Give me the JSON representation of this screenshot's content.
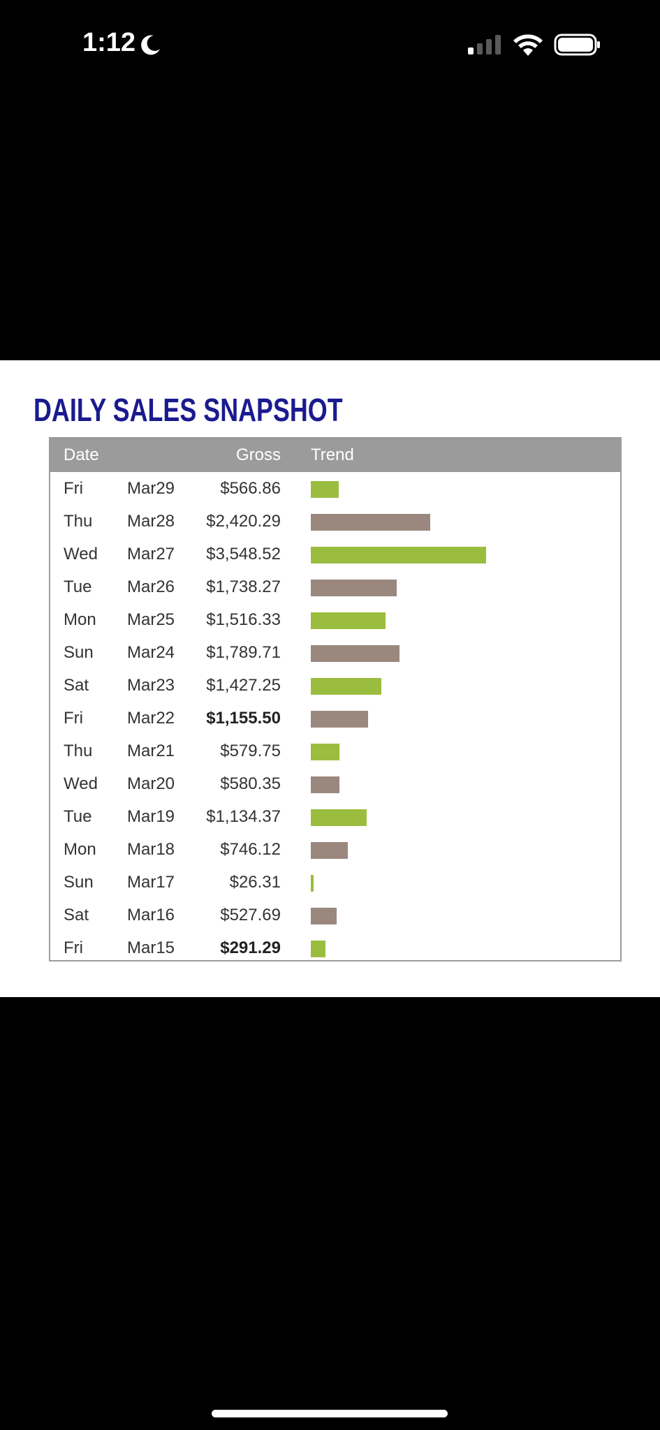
{
  "status_bar": {
    "time": "1:12",
    "moon_icon": "moon-icon",
    "signal_icon": "cellular-signal-icon",
    "wifi_icon": "wifi-icon",
    "battery_icon": "battery-icon"
  },
  "card": {
    "title": "DAILY SALES SNAPSHOT",
    "headers": {
      "date": "Date",
      "gross": "Gross",
      "trend": "Trend"
    },
    "colors": {
      "title": "#1a1b8f",
      "header_bg": "#9b9b9b",
      "bar_green": "#9bbd3f",
      "bar_taupe": "#9a877e"
    }
  },
  "chart_data": {
    "type": "table",
    "title": "DAILY SALES SNAPSHOT",
    "columns": [
      "Date",
      "Gross",
      "Trend"
    ],
    "trend_max": 3548.52,
    "rows": [
      {
        "day": "Fri",
        "date": "Mar29",
        "gross": "$566.86",
        "value": 566.86,
        "bold": false,
        "color": "#9bbd3f"
      },
      {
        "day": "Thu",
        "date": "Mar28",
        "gross": "$2,420.29",
        "value": 2420.29,
        "bold": false,
        "color": "#9a877e"
      },
      {
        "day": "Wed",
        "date": "Mar27",
        "gross": "$3,548.52",
        "value": 3548.52,
        "bold": false,
        "color": "#9bbd3f"
      },
      {
        "day": "Tue",
        "date": "Mar26",
        "gross": "$1,738.27",
        "value": 1738.27,
        "bold": false,
        "color": "#9a877e"
      },
      {
        "day": "Mon",
        "date": "Mar25",
        "gross": "$1,516.33",
        "value": 1516.33,
        "bold": false,
        "color": "#9bbd3f"
      },
      {
        "day": "Sun",
        "date": "Mar24",
        "gross": "$1,789.71",
        "value": 1789.71,
        "bold": false,
        "color": "#9a877e"
      },
      {
        "day": "Sat",
        "date": "Mar23",
        "gross": "$1,427.25",
        "value": 1427.25,
        "bold": false,
        "color": "#9bbd3f"
      },
      {
        "day": "Fri",
        "date": "Mar22",
        "gross": "$1,155.50",
        "value": 1155.5,
        "bold": true,
        "color": "#9a877e"
      },
      {
        "day": "Thu",
        "date": "Mar21",
        "gross": "$579.75",
        "value": 579.75,
        "bold": false,
        "color": "#9bbd3f"
      },
      {
        "day": "Wed",
        "date": "Mar20",
        "gross": "$580.35",
        "value": 580.35,
        "bold": false,
        "color": "#9a877e"
      },
      {
        "day": "Tue",
        "date": "Mar19",
        "gross": "$1,134.37",
        "value": 1134.37,
        "bold": false,
        "color": "#9bbd3f"
      },
      {
        "day": "Mon",
        "date": "Mar18",
        "gross": "$746.12",
        "value": 746.12,
        "bold": false,
        "color": "#9a877e"
      },
      {
        "day": "Sun",
        "date": "Mar17",
        "gross": "$26.31",
        "value": 26.31,
        "bold": false,
        "color": "#9bbd3f"
      },
      {
        "day": "Sat",
        "date": "Mar16",
        "gross": "$527.69",
        "value": 527.69,
        "bold": false,
        "color": "#9a877e"
      },
      {
        "day": "Fri",
        "date": "Mar15",
        "gross": "$291.29",
        "value": 291.29,
        "bold": true,
        "color": "#9bbd3f"
      }
    ]
  }
}
